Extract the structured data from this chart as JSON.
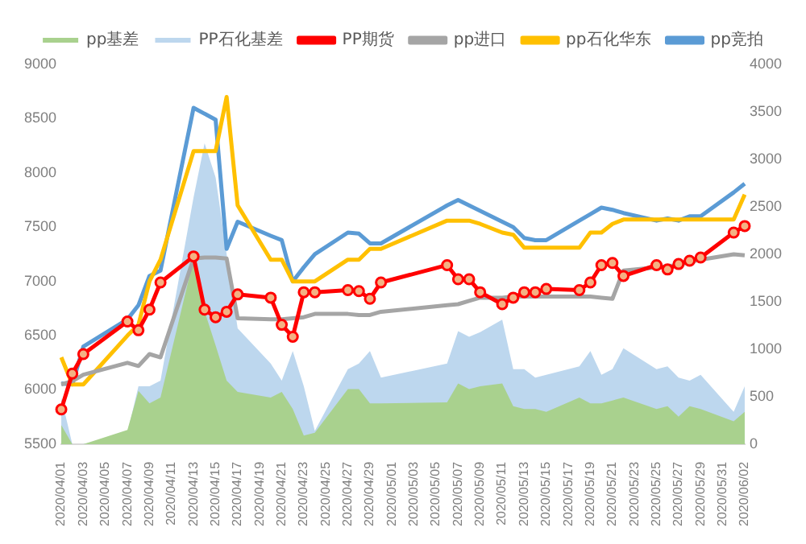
{
  "chart_data": {
    "type": "line",
    "categories": [
      "2020/04/01",
      null,
      "2020/04/03",
      null,
      "2020/04/05",
      null,
      "2020/04/07",
      null,
      "2020/04/09",
      null,
      "2020/04/11",
      null,
      "2020/04/13",
      null,
      "2020/04/15",
      null,
      "2020/04/17",
      null,
      "2020/04/19",
      null,
      "2020/04/21",
      null,
      "2020/04/23",
      null,
      "2020/04/25",
      null,
      "2020/04/27",
      null,
      "2020/04/29",
      null,
      "2020/05/01",
      null,
      "2020/05/03",
      null,
      "2020/05/05",
      null,
      "2020/05/07",
      null,
      "2020/05/09",
      null,
      "2020/05/11",
      null,
      "2020/05/13",
      null,
      "2020/05/15",
      null,
      "2020/05/17",
      null,
      "2020/05/19",
      null,
      "2020/05/21",
      null,
      "2020/05/23",
      null,
      "2020/05/25",
      null,
      "2020/05/27",
      null,
      "2020/05/29",
      null,
      "2020/05/31",
      null,
      "2020/06/02"
    ],
    "series": [
      {
        "name": "pp基差",
        "type": "area",
        "axis": "y2",
        "color": "#a9d18e",
        "marker": "none",
        "values": [
          200,
          0,
          0,
          null,
          null,
          null,
          150,
          560,
          430,
          490,
          null,
          null,
          1950,
          1400,
          1040,
          670,
          550,
          null,
          null,
          490,
          550,
          370,
          90,
          120,
          null,
          null,
          580,
          580,
          430,
          430,
          null,
          null,
          null,
          null,
          null,
          440,
          640,
          580,
          610,
          null,
          640,
          400,
          370,
          370,
          340,
          null,
          null,
          490,
          430,
          430,
          460,
          490,
          null,
          null,
          370,
          400,
          290,
          400,
          370,
          null,
          null,
          240,
          340
        ]
      },
      {
        "name": "PP石化基差",
        "type": "area",
        "axis": "y2",
        "color": "#bdd7ee",
        "marker": "none",
        "values": [
          490,
          0,
          0,
          null,
          null,
          null,
          120,
          610,
          610,
          670,
          null,
          null,
          2600,
          3170,
          2810,
          2000,
          1220,
          null,
          null,
          850,
          670,
          980,
          610,
          140,
          null,
          null,
          790,
          850,
          980,
          700,
          null,
          null,
          null,
          null,
          null,
          850,
          1190,
          1130,
          1180,
          null,
          1310,
          790,
          790,
          700,
          730,
          null,
          null,
          820,
          980,
          730,
          790,
          1010,
          null,
          null,
          790,
          820,
          700,
          670,
          730,
          null,
          null,
          340,
          610
        ]
      },
      {
        "name": "PP期货",
        "color": "#ff0000",
        "marker": "circle",
        "values": [
          5820,
          6150,
          6330,
          null,
          null,
          null,
          6630,
          6550,
          6740,
          6990,
          null,
          null,
          7230,
          6740,
          6670,
          6720,
          6880,
          null,
          null,
          6850,
          6600,
          6490,
          6900,
          6900,
          null,
          null,
          6920,
          6910,
          6840,
          6990,
          null,
          null,
          null,
          null,
          null,
          7150,
          7020,
          7020,
          6900,
          null,
          6790,
          6850,
          6900,
          6900,
          6930,
          null,
          null,
          6920,
          6990,
          7150,
          7170,
          7050,
          null,
          null,
          7150,
          7110,
          7160,
          7190,
          7220,
          null,
          null,
          7450,
          7510
        ]
      },
      {
        "name": "pp进口",
        "color": "#a5a5a5",
        "marker": "none",
        "values": [
          6050,
          6080,
          6140,
          null,
          null,
          null,
          6250,
          6220,
          6330,
          6300,
          null,
          null,
          7210,
          7220,
          7220,
          7210,
          6660,
          null,
          null,
          6650,
          6650,
          6660,
          6670,
          6700,
          null,
          null,
          6700,
          6690,
          6690,
          6720,
          null,
          null,
          null,
          null,
          null,
          6780,
          6790,
          6820,
          6850,
          null,
          6850,
          6860,
          6860,
          6860,
          6860,
          null,
          null,
          6860,
          6860,
          6850,
          6840,
          7100,
          null,
          null,
          7130,
          7140,
          7150,
          7180,
          7200,
          null,
          null,
          7250,
          7240
        ]
      },
      {
        "name": "pp石化华东",
        "color": "#ffc000",
        "marker": "none",
        "values": [
          6300,
          6050,
          6050,
          null,
          null,
          null,
          6500,
          6600,
          7000,
          7200,
          null,
          null,
          8200,
          8200,
          8200,
          8700,
          7700,
          null,
          null,
          7200,
          7200,
          7000,
          7000,
          7000,
          null,
          null,
          7200,
          7200,
          7300,
          7300,
          null,
          null,
          null,
          null,
          null,
          7560,
          7560,
          7560,
          7530,
          null,
          7450,
          7430,
          7310,
          7310,
          7310,
          null,
          null,
          7310,
          7450,
          7450,
          7530,
          7570,
          null,
          null,
          7570,
          7570,
          7570,
          7570,
          7570,
          null,
          null,
          7570,
          7800
        ]
      },
      {
        "name": "pp竞拍",
        "color": "#5b9bd5",
        "marker": "none",
        "values": [
          6060,
          6050,
          6400,
          null,
          null,
          null,
          6650,
          6780,
          7050,
          7100,
          null,
          null,
          8600,
          null,
          8490,
          7300,
          7550,
          null,
          null,
          7420,
          7380,
          7000,
          7130,
          7250,
          null,
          null,
          7450,
          7440,
          7350,
          7350,
          null,
          null,
          null,
          null,
          null,
          7700,
          7750,
          7700,
          7650,
          null,
          7550,
          7500,
          7400,
          7380,
          7380,
          null,
          null,
          7560,
          7620,
          7680,
          7660,
          7630,
          null,
          null,
          7560,
          7580,
          7560,
          7600,
          7600,
          null,
          null,
          7820,
          7900
        ]
      }
    ],
    "ylim": [
      5500,
      9000
    ],
    "yticks": [
      5500,
      6000,
      6500,
      7000,
      7500,
      8000,
      8500,
      9000
    ],
    "y2lim": [
      0,
      4000
    ],
    "y2ticks": [
      0,
      500,
      1000,
      1500,
      2000,
      2500,
      3000,
      3500,
      4000
    ],
    "legend": "top"
  }
}
